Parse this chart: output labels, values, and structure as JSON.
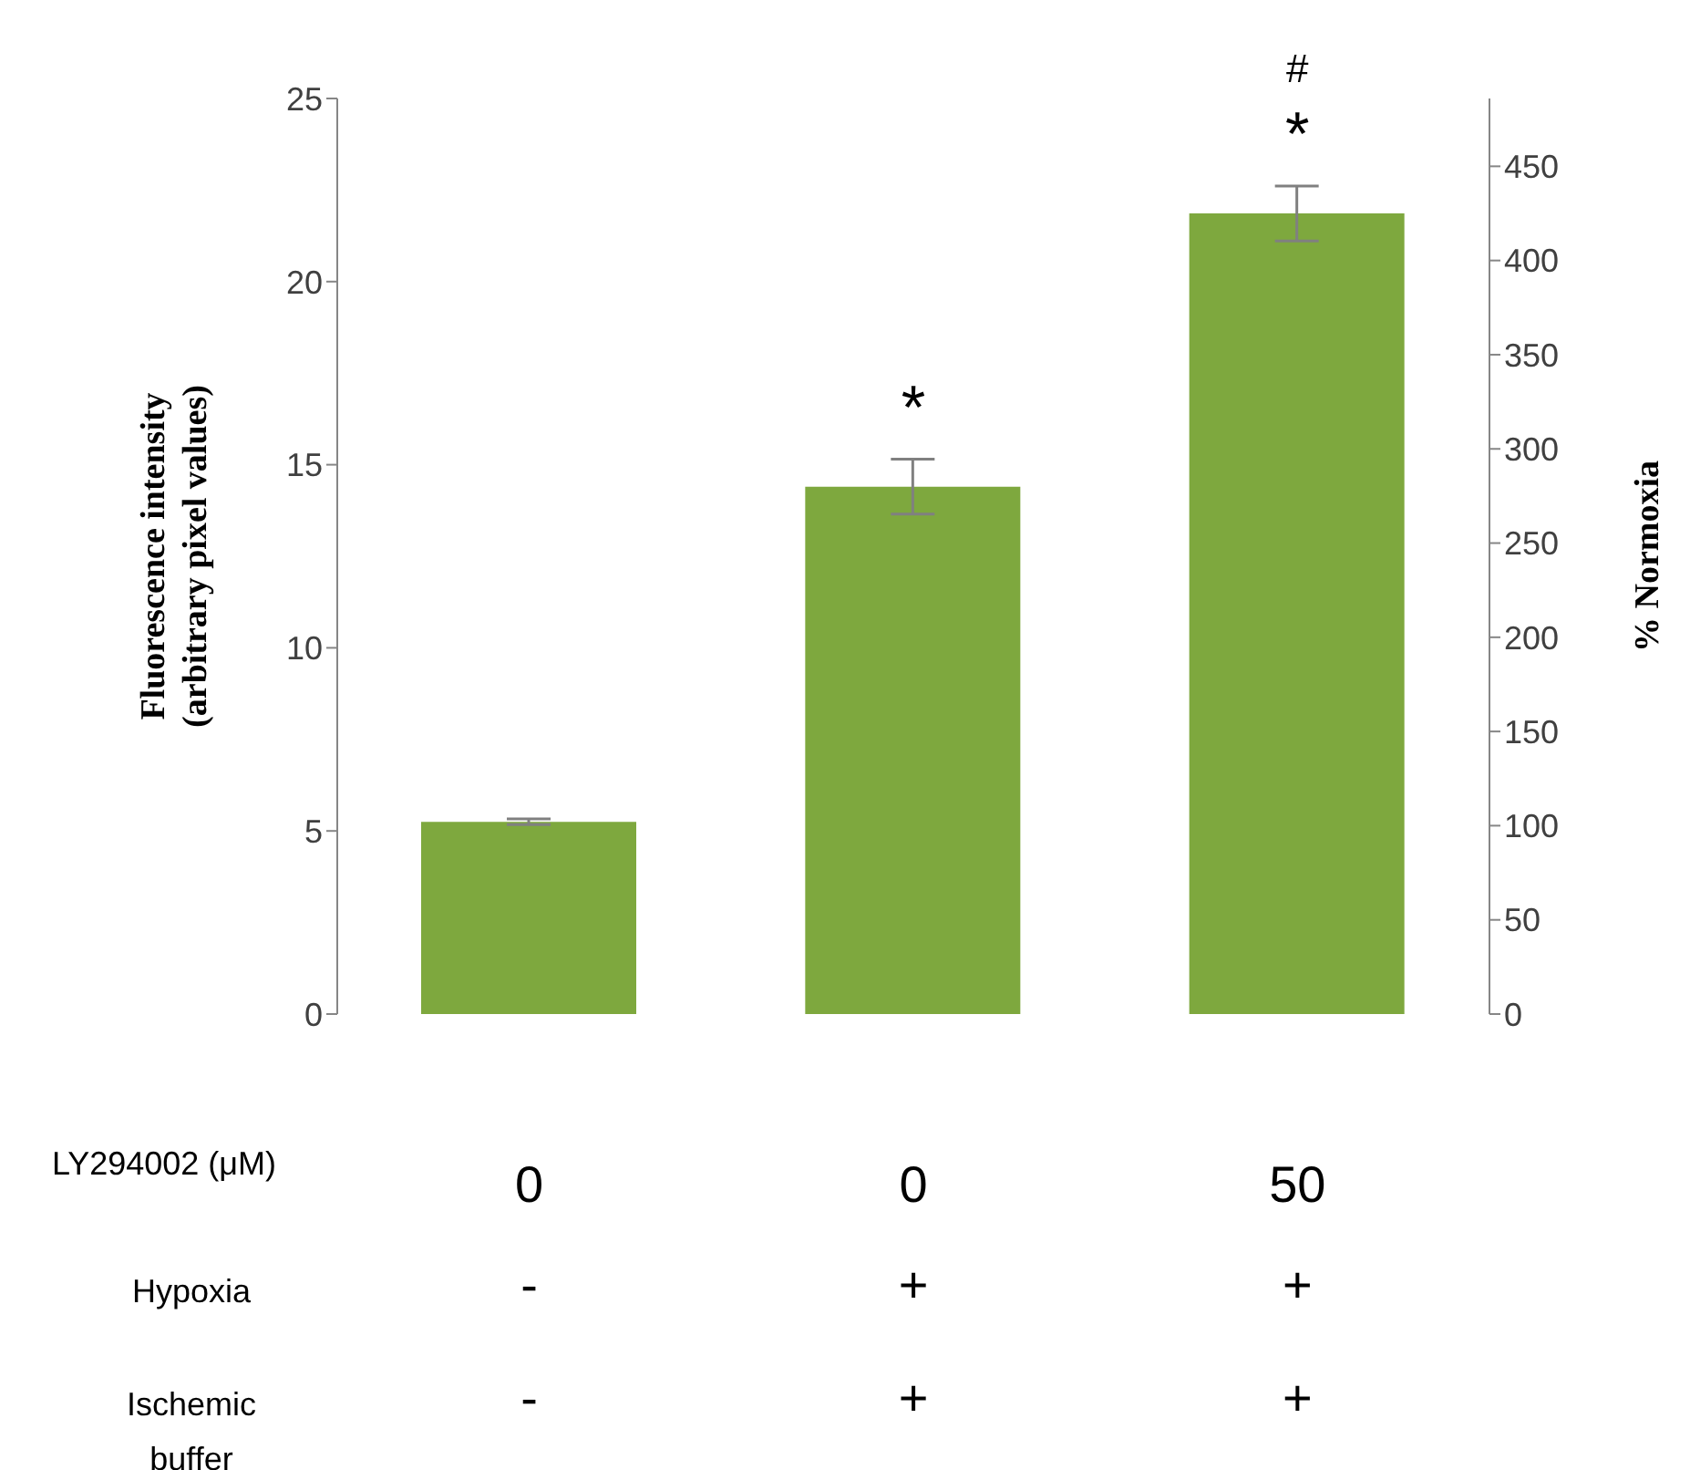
{
  "chart_data": {
    "type": "bar",
    "ylabel": "Fluorescence intensity\n(arbitrary pixel values)",
    "y2label": "% Normoxia",
    "xlabel": "LY294002 (μM)",
    "categories": [
      "0",
      "0",
      "50"
    ],
    "values": [
      5.25,
      14.4,
      21.86
    ],
    "errors": [
      0.08,
      0.75,
      0.75
    ],
    "color": "#7ea83e",
    "ylim": [
      0,
      25
    ],
    "yticks": [
      0,
      5,
      10,
      15,
      20,
      25
    ],
    "y2lim": [
      0,
      486
    ],
    "y2ticks": [
      0,
      50,
      100,
      150,
      200,
      250,
      300,
      350,
      400,
      450
    ],
    "annotations": [
      "*",
      "*",
      "#",
      "Hypoxia",
      "-",
      "+",
      "+",
      "Ischemic buffer",
      "-",
      "+",
      "+"
    ]
  }
}
